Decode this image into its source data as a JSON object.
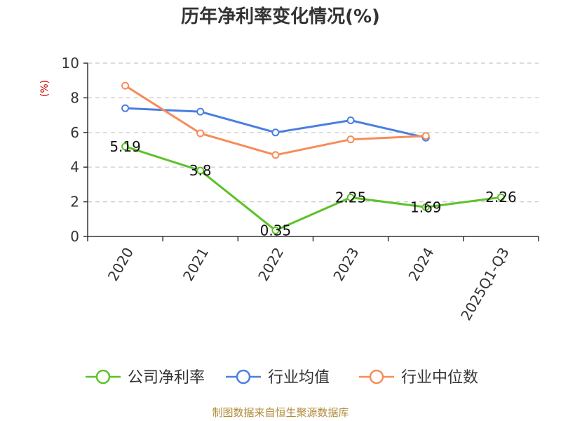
{
  "chart_data": {
    "type": "line",
    "title": "历年净利率变化情况(%)",
    "y_unit": "(%)",
    "categories": [
      "2020",
      "2021",
      "2022",
      "2023",
      "2024",
      "2025Q1-Q3"
    ],
    "ylim": [
      0,
      10
    ],
    "yticks": [
      "0",
      "2",
      "4",
      "6",
      "8",
      "10"
    ],
    "grid": true,
    "legend_position": "bottom",
    "series": [
      {
        "name": "公司净利率",
        "color": "#5cc228",
        "values": [
          5.19,
          3.8,
          0.35,
          2.25,
          1.69,
          2.26
        ],
        "labels": [
          "5.19",
          "3.8",
          "0.35",
          "2.25",
          "1.69",
          "2.26"
        ]
      },
      {
        "name": "行业均值",
        "color": "#4a7fe0",
        "values": [
          7.4,
          7.2,
          6.0,
          6.7,
          5.7,
          null
        ]
      },
      {
        "name": "行业中位数",
        "color": "#f68c5a",
        "values": [
          8.7,
          5.95,
          4.7,
          5.6,
          5.8,
          null
        ]
      }
    ]
  },
  "source": "制图数据来自恒生聚源数据库"
}
